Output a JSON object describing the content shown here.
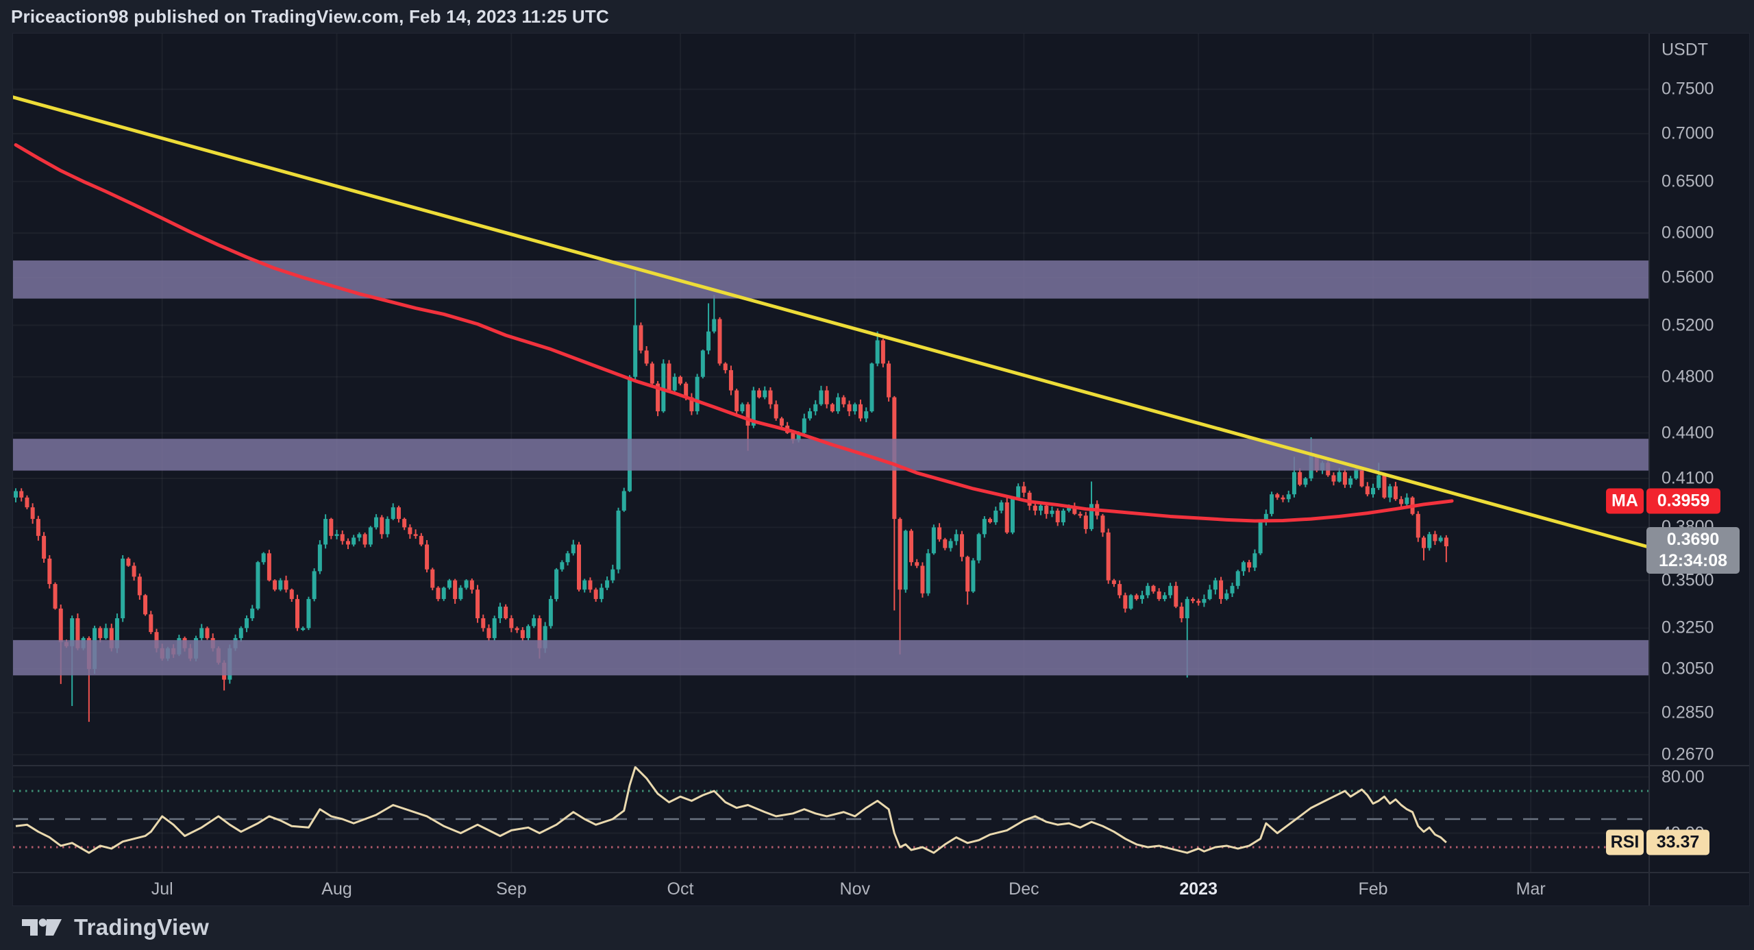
{
  "header": {
    "title": "Priceaction98 published on TradingView.com, Feb 14, 2023 11:25 UTC"
  },
  "footer": {
    "brand": "TradingView"
  },
  "price_scale": {
    "currency_label": "USDT",
    "ticks": [
      {
        "text": "0.7500",
        "price": 0.75
      },
      {
        "text": "0.7000",
        "price": 0.7
      },
      {
        "text": "0.6500",
        "price": 0.65
      },
      {
        "text": "0.6000",
        "price": 0.6
      },
      {
        "text": "0.5600",
        "price": 0.56
      },
      {
        "text": "0.5200",
        "price": 0.52
      },
      {
        "text": "0.4800",
        "price": 0.48
      },
      {
        "text": "0.4400",
        "price": 0.44
      },
      {
        "text": "0.4100",
        "price": 0.41
      },
      {
        "text": "0.3800",
        "price": 0.38
      },
      {
        "text": "0.3500",
        "price": 0.35
      },
      {
        "text": "0.3250",
        "price": 0.325
      },
      {
        "text": "0.3050",
        "price": 0.305
      },
      {
        "text": "0.2850",
        "price": 0.285
      },
      {
        "text": "0.2670",
        "price": 0.267
      }
    ],
    "rsi_ticks": [
      {
        "text": "80.00",
        "value": 80
      },
      {
        "text": "40.00",
        "value": 40
      }
    ]
  },
  "time_scale": {
    "labels": [
      {
        "text": "Jul",
        "day": 26,
        "major": false
      },
      {
        "text": "Aug",
        "day": 57,
        "major": false
      },
      {
        "text": "Sep",
        "day": 88,
        "major": false
      },
      {
        "text": "Oct",
        "day": 118,
        "major": false
      },
      {
        "text": "Nov",
        "day": 149,
        "major": false
      },
      {
        "text": "Dec",
        "day": 179,
        "major": false
      },
      {
        "text": "2023",
        "day": 210,
        "major": true
      },
      {
        "text": "Feb",
        "day": 241,
        "major": false
      },
      {
        "text": "Mar",
        "day": 269,
        "major": false
      }
    ]
  },
  "badges": {
    "ma": {
      "label": "MA",
      "value": "0.3959",
      "price": 0.3959,
      "bg": "#f2242e",
      "fg": "#ffffff"
    },
    "last_price": {
      "value": "0.3690",
      "countdown": "12:34:08",
      "price": 0.369,
      "bg": "#8a8f99",
      "fg": "#ffffff"
    },
    "rsi": {
      "label": "RSI",
      "value": "33.37",
      "rsi": 33.37,
      "bg": "#f6ddab",
      "fg": "#11141d"
    }
  },
  "colors": {
    "bg_page": "#1b202b",
    "bg_chart": "#131722",
    "grid": "rgba(255,255,255,0.045)",
    "separator": "#2a2e39",
    "label": "#b2b5be",
    "candle_up": "#2aab9f",
    "candle_down": "#ef5350",
    "zone_fill": "rgba(122,115,157,0.85)",
    "trendline": "#eddc38",
    "ma_line": "#f2323d",
    "rsi_line": "#ead9ae",
    "rsi_upper": "#3d8f74",
    "rsi_middle": "#6b7380",
    "rsi_lower": "#b35a6b"
  },
  "chart_data": {
    "type": "candlestick",
    "quote_currency": "USDT",
    "price_scale_type": "log",
    "panes": [
      "price",
      "rsi"
    ],
    "candles": {
      "first_open": 0.398,
      "day0_note": "daily bars; day 26 = Jul 1, day 210 = Jan 1 2023, last bar day 254 = Feb 14 2023",
      "closes": [
        0.402,
        0.398,
        0.392,
        0.385,
        0.375,
        0.362,
        0.348,
        0.335,
        0.318,
        0.316,
        0.33,
        0.315,
        0.32,
        0.305,
        0.325,
        0.32,
        0.325,
        0.315,
        0.33,
        0.362,
        0.358,
        0.352,
        0.342,
        0.332,
        0.323,
        0.315,
        0.31,
        0.315,
        0.312,
        0.32,
        0.315,
        0.31,
        0.32,
        0.325,
        0.32,
        0.315,
        0.308,
        0.3,
        0.315,
        0.32,
        0.325,
        0.33,
        0.335,
        0.36,
        0.365,
        0.35,
        0.345,
        0.35,
        0.345,
        0.34,
        0.325,
        0.325,
        0.34,
        0.355,
        0.37,
        0.385,
        0.375,
        0.376,
        0.372,
        0.37,
        0.374,
        0.376,
        0.37,
        0.38,
        0.386,
        0.376,
        0.385,
        0.392,
        0.385,
        0.38,
        0.376,
        0.375,
        0.37,
        0.356,
        0.346,
        0.34,
        0.346,
        0.35,
        0.34,
        0.346,
        0.35,
        0.345,
        0.33,
        0.325,
        0.32,
        0.33,
        0.336,
        0.33,
        0.325,
        0.324,
        0.32,
        0.326,
        0.33,
        0.315,
        0.326,
        0.34,
        0.356,
        0.36,
        0.365,
        0.37,
        0.345,
        0.35,
        0.345,
        0.34,
        0.346,
        0.35,
        0.356,
        0.39,
        0.402,
        0.48,
        0.52,
        0.5,
        0.49,
        0.475,
        0.455,
        0.49,
        0.47,
        0.48,
        0.475,
        0.465,
        0.455,
        0.48,
        0.5,
        0.515,
        0.525,
        0.49,
        0.485,
        0.47,
        0.455,
        0.46,
        0.445,
        0.47,
        0.465,
        0.47,
        0.46,
        0.45,
        0.445,
        0.44,
        0.435,
        0.44,
        0.45,
        0.455,
        0.46,
        0.47,
        0.46,
        0.455,
        0.465,
        0.46,
        0.455,
        0.46,
        0.45,
        0.455,
        0.49,
        0.508,
        0.49,
        0.465,
        0.385,
        0.345,
        0.378,
        0.36,
        0.358,
        0.343,
        0.365,
        0.38,
        0.373,
        0.368,
        0.372,
        0.376,
        0.363,
        0.344,
        0.361,
        0.376,
        0.385,
        0.383,
        0.39,
        0.395,
        0.377,
        0.398,
        0.405,
        0.401,
        0.393,
        0.39,
        0.393,
        0.388,
        0.39,
        0.383,
        0.39,
        0.392,
        0.388,
        0.387,
        0.379,
        0.394,
        0.387,
        0.377,
        0.35,
        0.348,
        0.342,
        0.335,
        0.342,
        0.34,
        0.342,
        0.347,
        0.344,
        0.34,
        0.342,
        0.347,
        0.336,
        0.33,
        0.34,
        0.339,
        0.338,
        0.34,
        0.345,
        0.35,
        0.34,
        0.343,
        0.347,
        0.355,
        0.36,
        0.357,
        0.365,
        0.383,
        0.388,
        0.4,
        0.398,
        0.397,
        0.4,
        0.414,
        0.406,
        0.41,
        0.425,
        0.415,
        0.42,
        0.412,
        0.408,
        0.414,
        0.406,
        0.41,
        0.416,
        0.405,
        0.4,
        0.404,
        0.412,
        0.398,
        0.405,
        0.397,
        0.394,
        0.398,
        0.388,
        0.374,
        0.368,
        0.376,
        0.372,
        0.374,
        0.369
      ],
      "wick_overrides": {
        "8": {
          "l": 0.298
        },
        "10": {
          "l": 0.288
        },
        "13": {
          "l": 0.281
        },
        "37": {
          "l": 0.295
        },
        "93": {
          "l": 0.31
        },
        "110": {
          "h": 0.565
        },
        "123": {
          "h": 0.538
        },
        "124": {
          "h": 0.545
        },
        "130": {
          "l": 0.428
        },
        "153": {
          "h": 0.515
        },
        "156": {
          "l": 0.334
        },
        "157": {
          "l": 0.312
        },
        "169": {
          "l": 0.337
        },
        "191": {
          "h": 0.408
        },
        "208": {
          "l": 0.301
        },
        "227": {
          "h": 0.424
        },
        "230": {
          "h": 0.437
        },
        "242": {
          "h": 0.42
        },
        "250": {
          "l": 0.361
        },
        "254": {
          "l": 0.36
        }
      }
    },
    "overlays": {
      "zones": [
        {
          "top": 0.575,
          "bottom": 0.542
        },
        {
          "top": 0.436,
          "bottom": 0.415
        },
        {
          "top": 0.319,
          "bottom": 0.302
        }
      ],
      "trendline": {
        "points": [
          {
            "day": 0,
            "price": 0.74
          },
          {
            "day": 290,
            "price": 0.3685
          }
        ]
      },
      "ma_line": {
        "last_value": 0.3959,
        "points": [
          [
            0,
            0.688
          ],
          [
            4,
            0.674
          ],
          [
            8,
            0.661
          ],
          [
            12,
            0.65
          ],
          [
            16,
            0.64
          ],
          [
            21,
            0.627
          ],
          [
            26,
            0.614
          ],
          [
            31,
            0.601
          ],
          [
            36,
            0.589
          ],
          [
            41,
            0.578
          ],
          [
            46,
            0.568
          ],
          [
            51,
            0.56
          ],
          [
            56,
            0.553
          ],
          [
            61,
            0.546
          ],
          [
            66,
            0.54
          ],
          [
            71,
            0.534
          ],
          [
            76,
            0.529
          ],
          [
            82,
            0.521
          ],
          [
            87,
            0.512
          ],
          [
            95,
            0.501
          ],
          [
            103,
            0.488
          ],
          [
            110,
            0.477
          ],
          [
            117,
            0.468
          ],
          [
            124,
            0.458
          ],
          [
            131,
            0.448
          ],
          [
            138,
            0.441
          ],
          [
            145,
            0.432
          ],
          [
            151,
            0.425
          ],
          [
            156,
            0.419
          ],
          [
            160,
            0.4135
          ],
          [
            165,
            0.4085
          ],
          [
            170,
            0.4035
          ],
          [
            175,
            0.3995
          ],
          [
            180,
            0.3955
          ],
          [
            185,
            0.3935
          ],
          [
            190,
            0.391
          ],
          [
            195,
            0.3895
          ],
          [
            200,
            0.388
          ],
          [
            205,
            0.3865
          ],
          [
            210,
            0.3855
          ],
          [
            215,
            0.3845
          ],
          [
            220,
            0.3838
          ],
          [
            225,
            0.384
          ],
          [
            230,
            0.385
          ],
          [
            235,
            0.3865
          ],
          [
            240,
            0.3885
          ],
          [
            245,
            0.391
          ],
          [
            250,
            0.3938
          ],
          [
            255,
            0.3959
          ]
        ]
      }
    },
    "rsi": {
      "last_value": 33.37,
      "levels": {
        "upper": 70,
        "middle": 50,
        "lower": 30
      },
      "grid_values": [
        80,
        40
      ],
      "points": [
        [
          0,
          45
        ],
        [
          2,
          46
        ],
        [
          4,
          41
        ],
        [
          6,
          37
        ],
        [
          8,
          31
        ],
        [
          10,
          33
        ],
        [
          13,
          26
        ],
        [
          15,
          31
        ],
        [
          17,
          29
        ],
        [
          19,
          34
        ],
        [
          21,
          36
        ],
        [
          23,
          38
        ],
        [
          24,
          41
        ],
        [
          26,
          52
        ],
        [
          28,
          46
        ],
        [
          30,
          38
        ],
        [
          33,
          44
        ],
        [
          36,
          52
        ],
        [
          38,
          46
        ],
        [
          40,
          41
        ],
        [
          43,
          47
        ],
        [
          45,
          52
        ],
        [
          47,
          49
        ],
        [
          49,
          45
        ],
        [
          52,
          44
        ],
        [
          54,
          57
        ],
        [
          56,
          52
        ],
        [
          58,
          50
        ],
        [
          60,
          47
        ],
        [
          62,
          50
        ],
        [
          64,
          53
        ],
        [
          67,
          60
        ],
        [
          70,
          56
        ],
        [
          73,
          52
        ],
        [
          76,
          45
        ],
        [
          79,
          40
        ],
        [
          82,
          46
        ],
        [
          84,
          42
        ],
        [
          86,
          38
        ],
        [
          88,
          42
        ],
        [
          91,
          44
        ],
        [
          93,
          40
        ],
        [
          96,
          46
        ],
        [
          99,
          55
        ],
        [
          101,
          50
        ],
        [
          103,
          46
        ],
        [
          106,
          50
        ],
        [
          108,
          56
        ],
        [
          109,
          74
        ],
        [
          110,
          87
        ],
        [
          111,
          83
        ],
        [
          112,
          79
        ],
        [
          114,
          68
        ],
        [
          116,
          62
        ],
        [
          118,
          66
        ],
        [
          120,
          63
        ],
        [
          122,
          67
        ],
        [
          124,
          70
        ],
        [
          126,
          62
        ],
        [
          128,
          58
        ],
        [
          130,
          60
        ],
        [
          133,
          55
        ],
        [
          135,
          52
        ],
        [
          138,
          54
        ],
        [
          140,
          57
        ],
        [
          142,
          54
        ],
        [
          144,
          52
        ],
        [
          147,
          55
        ],
        [
          149,
          52
        ],
        [
          151,
          58
        ],
        [
          153,
          63
        ],
        [
          155,
          57
        ],
        [
          156,
          40
        ],
        [
          157,
          30
        ],
        [
          158,
          32
        ],
        [
          159,
          28
        ],
        [
          161,
          30
        ],
        [
          163,
          26
        ],
        [
          165,
          32
        ],
        [
          167,
          37
        ],
        [
          169,
          33
        ],
        [
          171,
          35
        ],
        [
          173,
          39
        ],
        [
          176,
          42
        ],
        [
          179,
          49
        ],
        [
          181,
          52
        ],
        [
          183,
          48
        ],
        [
          185,
          46
        ],
        [
          187,
          47
        ],
        [
          189,
          44
        ],
        [
          191,
          48
        ],
        [
          193,
          45
        ],
        [
          195,
          41
        ],
        [
          197,
          36
        ],
        [
          199,
          32
        ],
        [
          201,
          30
        ],
        [
          203,
          31
        ],
        [
          205,
          29
        ],
        [
          207,
          27
        ],
        [
          208,
          26
        ],
        [
          210,
          29
        ],
        [
          211,
          27
        ],
        [
          213,
          30
        ],
        [
          215,
          31
        ],
        [
          217,
          29
        ],
        [
          219,
          31
        ],
        [
          221,
          36
        ],
        [
          222,
          47
        ],
        [
          224,
          40
        ],
        [
          226,
          46
        ],
        [
          228,
          52
        ],
        [
          230,
          58
        ],
        [
          232,
          62
        ],
        [
          234,
          66
        ],
        [
          236,
          70
        ],
        [
          237,
          66
        ],
        [
          239,
          71
        ],
        [
          240,
          67
        ],
        [
          241,
          61
        ],
        [
          242,
          63
        ],
        [
          243,
          66
        ],
        [
          244,
          61
        ],
        [
          245,
          64
        ],
        [
          246,
          60
        ],
        [
          247,
          57
        ],
        [
          248,
          55
        ],
        [
          249,
          45
        ],
        [
          250,
          41
        ],
        [
          251,
          44
        ],
        [
          252,
          39
        ],
        [
          253,
          37
        ],
        [
          254,
          33.37
        ]
      ]
    }
  }
}
